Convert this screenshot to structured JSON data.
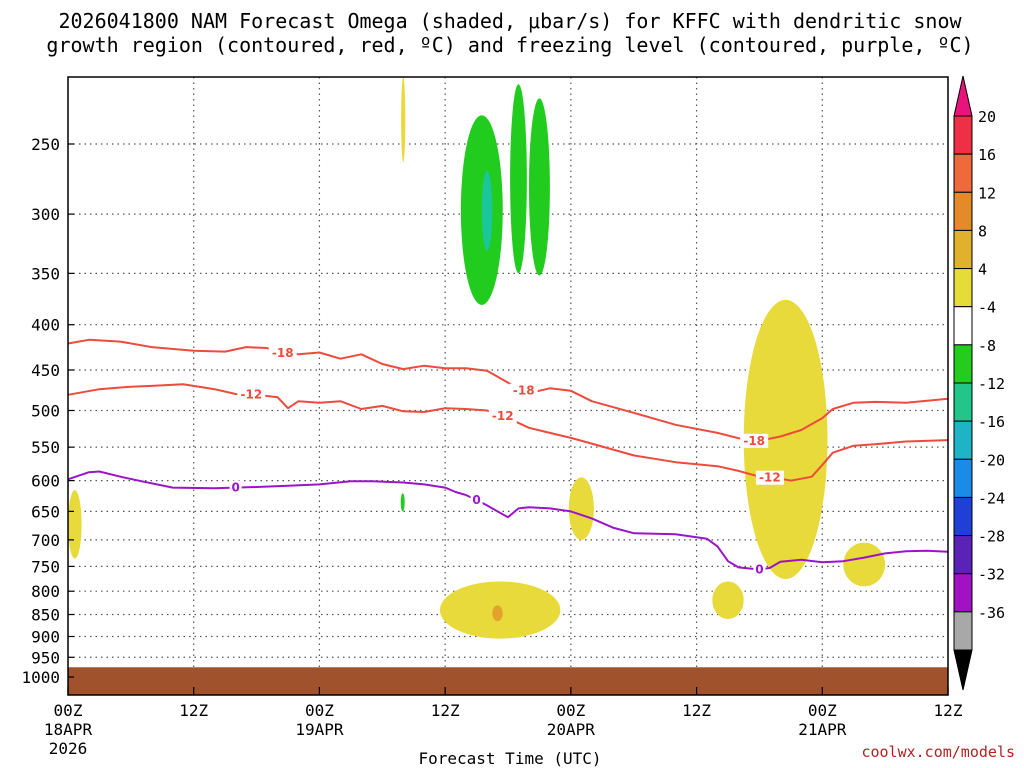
{
  "colors": {
    "background": "#ffffff",
    "ground": "#a0522d",
    "temp_contour": "#ee4a3d",
    "freezing_contour": "#9b14c8",
    "grid": "#555555"
  },
  "chart_data": {
    "type": "time-height-cross-section",
    "title_line1": "2026041800 NAM Forecast Omega (shaded, μbar/s) for KFFC with dendritic snow",
    "title_line2": "growth region (contoured, red, ºC) and freezing level (contoured, purple, ºC)",
    "xlabel": "Forecast Time (UTC)",
    "ylabel": "",
    "credit": "coolwx.com/models",
    "x_range_hours": [
      0,
      84
    ],
    "x_ticks": [
      {
        "hour": 0,
        "label": "00Z",
        "date": "18APR",
        "year": "2026"
      },
      {
        "hour": 12,
        "label": "12Z",
        "date": "",
        "year": ""
      },
      {
        "hour": 24,
        "label": "00Z",
        "date": "19APR",
        "year": ""
      },
      {
        "hour": 36,
        "label": "12Z",
        "date": "",
        "year": ""
      },
      {
        "hour": 48,
        "label": "00Z",
        "date": "20APR",
        "year": ""
      },
      {
        "hour": 60,
        "label": "12Z",
        "date": "",
        "year": ""
      },
      {
        "hour": 72,
        "label": "00Z",
        "date": "21APR",
        "year": ""
      },
      {
        "hour": 84,
        "label": "12Z",
        "date": "",
        "year": ""
      }
    ],
    "y_pressure_levels": [
      250,
      300,
      350,
      400,
      450,
      500,
      550,
      600,
      650,
      700,
      750,
      800,
      850,
      900,
      950,
      1000
    ],
    "y_range_hpa": [
      200,
      1020
    ],
    "contours": [
      {
        "name": "temp-minus18",
        "label": "-18",
        "color": "#ee4a3d",
        "points": [
          [
            0,
            420
          ],
          [
            2,
            416
          ],
          [
            5,
            418
          ],
          [
            8,
            424
          ],
          [
            12,
            428
          ],
          [
            15,
            429
          ],
          [
            17,
            424
          ],
          [
            19,
            425
          ],
          [
            20,
            430
          ],
          [
            22,
            432
          ],
          [
            24,
            430
          ],
          [
            26,
            437
          ],
          [
            28,
            432
          ],
          [
            30,
            443
          ],
          [
            32,
            449
          ],
          [
            34,
            445
          ],
          [
            36,
            448
          ],
          [
            38,
            448
          ],
          [
            40,
            451
          ],
          [
            42,
            465
          ],
          [
            44,
            478
          ],
          [
            46,
            472
          ],
          [
            48,
            475
          ],
          [
            50,
            488
          ],
          [
            54,
            503
          ],
          [
            58,
            519
          ],
          [
            62,
            530
          ],
          [
            65,
            541
          ],
          [
            66,
            541
          ],
          [
            68,
            535
          ],
          [
            70,
            526
          ],
          [
            72,
            510
          ],
          [
            73,
            498
          ],
          [
            75,
            490
          ],
          [
            77,
            489
          ],
          [
            80,
            490
          ],
          [
            84,
            485
          ]
        ],
        "label_hours": [
          20.5,
          43.5,
          65.5
        ]
      },
      {
        "name": "temp-minus12",
        "label": "-12",
        "color": "#ee4a3d",
        "points": [
          [
            0,
            480
          ],
          [
            3,
            473
          ],
          [
            6,
            470
          ],
          [
            8,
            469
          ],
          [
            11,
            467
          ],
          [
            14,
            473
          ],
          [
            16,
            479
          ],
          [
            18,
            480
          ],
          [
            20,
            483
          ],
          [
            21,
            497
          ],
          [
            22,
            488
          ],
          [
            24,
            490
          ],
          [
            26,
            488
          ],
          [
            28,
            498
          ],
          [
            30,
            494
          ],
          [
            32,
            501
          ],
          [
            34,
            502
          ],
          [
            36,
            497
          ],
          [
            38,
            498
          ],
          [
            40,
            500
          ],
          [
            42,
            510
          ],
          [
            44,
            523
          ],
          [
            46,
            530
          ],
          [
            48,
            537
          ],
          [
            50,
            545
          ],
          [
            54,
            562
          ],
          [
            58,
            572
          ],
          [
            62,
            578
          ],
          [
            64,
            585
          ],
          [
            66,
            594
          ],
          [
            68,
            597
          ],
          [
            69,
            600
          ],
          [
            70,
            597
          ],
          [
            71,
            594
          ],
          [
            72,
            576
          ],
          [
            73,
            558
          ],
          [
            75,
            548
          ],
          [
            77,
            546
          ],
          [
            80,
            542
          ],
          [
            84,
            540
          ]
        ],
        "label_hours": [
          17.5,
          41.5,
          67
        ]
      },
      {
        "name": "freezing-level",
        "label": "0",
        "color": "#9b14c8",
        "points": [
          [
            0,
            598
          ],
          [
            2,
            587
          ],
          [
            3,
            586
          ],
          [
            5,
            594
          ],
          [
            7,
            601
          ],
          [
            10,
            611
          ],
          [
            14,
            612
          ],
          [
            18,
            610
          ],
          [
            21,
            608
          ],
          [
            24,
            606
          ],
          [
            27,
            601
          ],
          [
            29,
            601
          ],
          [
            32,
            603
          ],
          [
            34,
            606
          ],
          [
            36,
            611
          ],
          [
            37,
            618
          ],
          [
            38,
            623
          ],
          [
            39,
            631
          ],
          [
            40,
            640
          ],
          [
            41,
            650
          ],
          [
            42,
            660
          ],
          [
            43,
            645
          ],
          [
            44,
            643
          ],
          [
            46,
            645
          ],
          [
            48,
            650
          ],
          [
            50,
            662
          ],
          [
            52,
            678
          ],
          [
            54,
            688
          ],
          [
            58,
            690
          ],
          [
            61,
            698
          ],
          [
            62,
            712
          ],
          [
            63,
            740
          ],
          [
            64,
            752
          ],
          [
            66,
            756
          ],
          [
            67,
            753
          ],
          [
            68,
            741
          ],
          [
            70,
            737
          ],
          [
            72,
            742
          ],
          [
            74,
            740
          ],
          [
            76,
            733
          ],
          [
            78,
            725
          ],
          [
            80,
            721
          ],
          [
            82,
            720
          ],
          [
            84,
            722
          ]
        ],
        "label_hours": [
          16,
          39,
          66
        ]
      }
    ],
    "omega_regions": [
      {
        "name": "omega-pos-1",
        "sign": "+",
        "level_band": "4 to 8",
        "color": "#e8da3a",
        "bbox_data": {
          "hour_min": 0,
          "hour_max": 1.3,
          "p_top": 615,
          "p_bottom": 735
        }
      },
      {
        "name": "omega-pos-2",
        "sign": "+",
        "level_band": "4 to 8",
        "color": "#e8da3a",
        "bbox_data": {
          "hour_min": 31.8,
          "hour_max": 32.2,
          "p_top": 210,
          "p_bottom": 262
        }
      },
      {
        "name": "omega-pos-3",
        "sign": "+",
        "level_band": "4 to 8",
        "color": "#e8da3a",
        "bbox_data": {
          "hour_min": 47.8,
          "hour_max": 50.2,
          "p_top": 595,
          "p_bottom": 700
        }
      },
      {
        "name": "omega-pos-4",
        "sign": "+",
        "level_band": "4 to 8",
        "color": "#e8da3a",
        "bbox_data": {
          "hour_min": 35.5,
          "hour_max": 47,
          "p_top": 780,
          "p_bottom": 905
        }
      },
      {
        "name": "omega-pos-5",
        "sign": "+",
        "level_band": "8 to 12",
        "color": "#e2a22b",
        "bbox_data": {
          "hour_min": 40.5,
          "hour_max": 41.5,
          "p_top": 830,
          "p_bottom": 865
        }
      },
      {
        "name": "omega-pos-6",
        "sign": "+",
        "level_band": "4 to 8",
        "color": "#e8da3a",
        "bbox_data": {
          "hour_min": 61.5,
          "hour_max": 64.5,
          "p_top": 780,
          "p_bottom": 860
        }
      },
      {
        "name": "omega-pos-7",
        "sign": "+",
        "level_band": "4 to 8",
        "color": "#e8da3a",
        "bbox_data": {
          "hour_min": 64.5,
          "hour_max": 72.5,
          "p_top": 375,
          "p_bottom": 775
        }
      },
      {
        "name": "omega-pos-8",
        "sign": "+",
        "level_band": "4 to 8",
        "color": "#e8da3a",
        "bbox_data": {
          "hour_min": 74,
          "hour_max": 78,
          "p_top": 705,
          "p_bottom": 790
        }
      },
      {
        "name": "omega-neg-1",
        "sign": "-",
        "level_band": "-4 to -8",
        "color": "#22cc1f",
        "bbox_data": {
          "hour_min": 37.5,
          "hour_max": 41.5,
          "p_top": 232,
          "p_bottom": 380
        }
      },
      {
        "name": "omega-neg-2",
        "sign": "-",
        "level_band": "-8 to -12",
        "color": "#1bc79a",
        "bbox_data": {
          "hour_min": 39.5,
          "hour_max": 40.5,
          "p_top": 268,
          "p_bottom": 330
        }
      },
      {
        "name": "omega-neg-3",
        "sign": "-",
        "level_band": "-4 to -8",
        "color": "#22cc1f",
        "bbox_data": {
          "hour_min": 42.2,
          "hour_max": 43.8,
          "p_top": 214,
          "p_bottom": 350
        }
      },
      {
        "name": "omega-neg-4",
        "sign": "-",
        "level_band": "-4 to -8",
        "color": "#22cc1f",
        "bbox_data": {
          "hour_min": 44,
          "hour_max": 46,
          "p_top": 222,
          "p_bottom": 352
        }
      },
      {
        "name": "omega-neg-5",
        "sign": "-",
        "level_band": "-4 to -8",
        "color": "#22cc1f",
        "bbox_data": {
          "hour_min": 31.8,
          "hour_max": 32.1,
          "p_top": 620,
          "p_bottom": 650
        }
      }
    ],
    "ground_top_hpa": 975,
    "colorbar": {
      "units": "μbar/s",
      "labels": [
        "20",
        "16",
        "12",
        "8",
        "4",
        "-4",
        "-8",
        "-12",
        "-16",
        "-20",
        "-24",
        "-28",
        "-32",
        "-36"
      ],
      "bands": [
        {
          "color": "#ee2f45"
        },
        {
          "color": "#f0693a"
        },
        {
          "color": "#e58a29"
        },
        {
          "color": "#e1b02c"
        },
        {
          "color": "#e6dc37"
        },
        {
          "color": "#ffffff"
        },
        {
          "color": "#24cc1e"
        },
        {
          "color": "#22c68a"
        },
        {
          "color": "#1fb3c6"
        },
        {
          "color": "#1a8ce8"
        },
        {
          "color": "#1f3fd6"
        },
        {
          "color": "#5b22b8"
        },
        {
          "color": "#a012c2"
        },
        {
          "color": "#a8a8a8"
        }
      ],
      "top_arrow_color": "#e8137c",
      "bottom_arrow_color": "#000000"
    }
  }
}
